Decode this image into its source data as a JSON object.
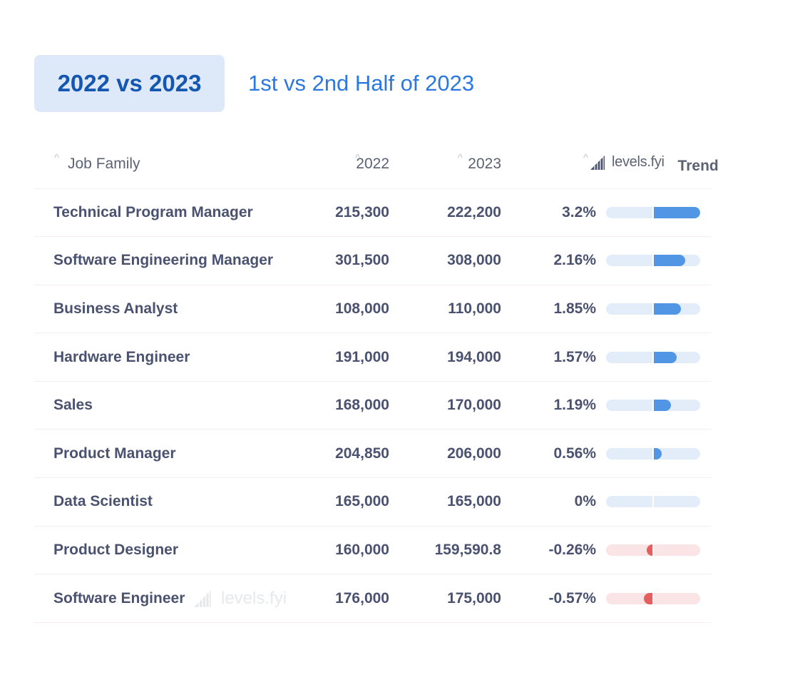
{
  "tabs": [
    {
      "label": "2022 vs 2023",
      "active": true
    },
    {
      "label": "1st vs 2nd Half of 2023",
      "active": false
    }
  ],
  "table": {
    "headers": {
      "job_family": "Job Family",
      "year_a": "2022",
      "year_b": "2023",
      "brand": "levels.fyi",
      "trend": "Trend"
    },
    "rows": [
      {
        "job": "Technical Program Manager",
        "y2022": "215,300",
        "y2023": "222,200",
        "change": "3.2%",
        "change_value": 3.2
      },
      {
        "job": "Software Engineering Manager",
        "y2022": "301,500",
        "y2023": "308,000",
        "change": "2.16%",
        "change_value": 2.16
      },
      {
        "job": "Business Analyst",
        "y2022": "108,000",
        "y2023": "110,000",
        "change": "1.85%",
        "change_value": 1.85
      },
      {
        "job": "Hardware Engineer",
        "y2022": "191,000",
        "y2023": "194,000",
        "change": "1.57%",
        "change_value": 1.57
      },
      {
        "job": "Sales",
        "y2022": "168,000",
        "y2023": "170,000",
        "change": "1.19%",
        "change_value": 1.19
      },
      {
        "job": "Product Manager",
        "y2022": "204,850",
        "y2023": "206,000",
        "change": "0.56%",
        "change_value": 0.56
      },
      {
        "job": "Data Scientist",
        "y2022": "165,000",
        "y2023": "165,000",
        "change": "0%",
        "change_value": 0
      },
      {
        "job": "Product Designer",
        "y2022": "160,000",
        "y2023": "159,590.8",
        "change": "-0.26%",
        "change_value": -0.26
      },
      {
        "job": "Software Engineer",
        "y2022": "176,000",
        "y2023": "175,000",
        "change": "-0.57%",
        "change_value": -0.57
      }
    ],
    "watermark": "levels.fyi"
  },
  "colors": {
    "accent": "#2b78e0",
    "tab_active_bg": "#dde9f9",
    "positive": "#5096e5",
    "negative": "#e55e5e"
  },
  "icons": {
    "sort": "chevron-up-icon",
    "brand": "levels-fyi-logo-icon"
  }
}
